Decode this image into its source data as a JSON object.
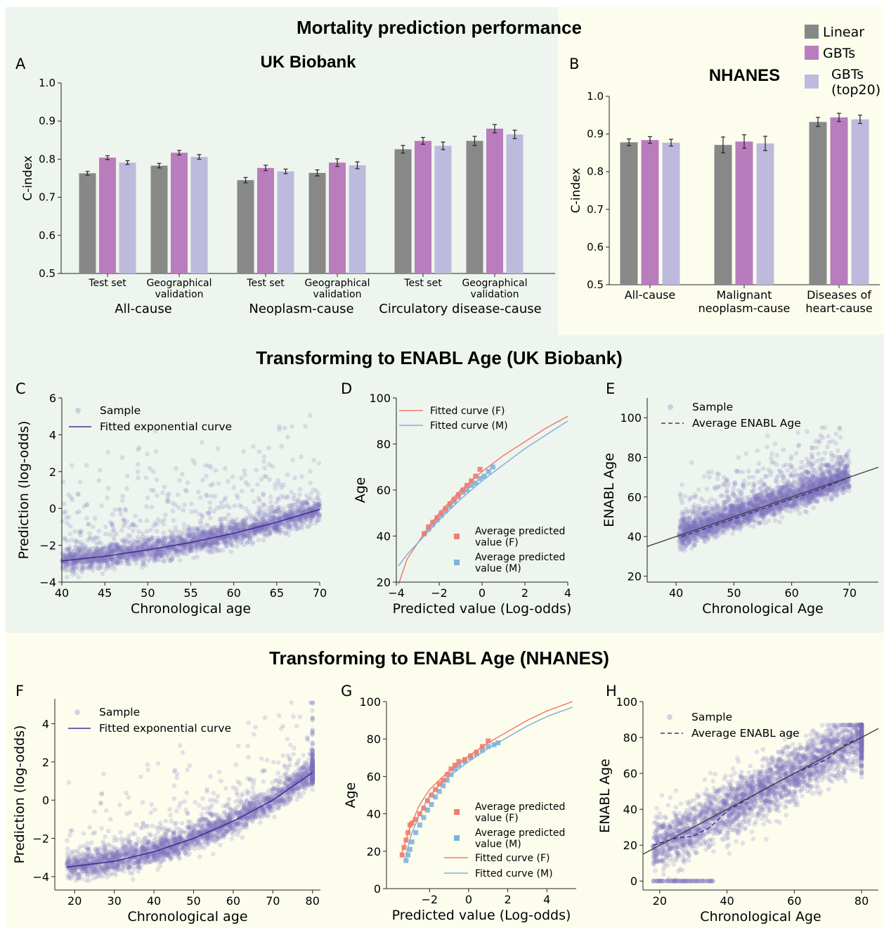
{
  "sections": {
    "top_title": "Mortality prediction performance",
    "mid_title": "Transforming to ENABL Age (UK Biobank)",
    "bottom_title": "Transforming to ENABL Age (NHANES)"
  },
  "colors": {
    "bg_green": "#eef5ee",
    "bg_yellow": "#fdfdee",
    "linear": "#888888",
    "gbts": "#b97dbd",
    "gbts20": "#bdbadd",
    "scatter": "#7e74bf",
    "curve": "#4b2c8f",
    "red": "#f27b6b",
    "blue": "#7fb2d8"
  },
  "chart_data": [
    {
      "id": "A",
      "panel_label": "A",
      "type": "bar",
      "title": "UK Biobank",
      "ylabel": "C-index",
      "ylim": [
        0.5,
        1.0
      ],
      "yticks": [
        "0.5",
        "0.6",
        "0.7",
        "0.8",
        "0.9",
        "1.0"
      ],
      "categories": [
        "Test set",
        "Geographical validation",
        "Test set",
        "Geographical validation",
        "Test set",
        "Geographical validation"
      ],
      "category_lines": [
        [
          "Test set"
        ],
        [
          "Geographical",
          "validation"
        ],
        [
          "Test set"
        ],
        [
          "Geographical",
          "validation"
        ],
        [
          "Test set"
        ],
        [
          "Geographical",
          "validation"
        ]
      ],
      "groups": [
        "All-cause",
        "Neoplasm-cause",
        "Circulatory disease-cause"
      ],
      "series": [
        {
          "name": "Linear",
          "values": [
            0.763,
            0.783,
            0.745,
            0.764,
            0.826,
            0.848
          ],
          "err": [
            0.005,
            0.006,
            0.007,
            0.008,
            0.01,
            0.012
          ]
        },
        {
          "name": "GBTs",
          "values": [
            0.804,
            0.817,
            0.777,
            0.791,
            0.848,
            0.88
          ],
          "err": [
            0.005,
            0.006,
            0.007,
            0.01,
            0.009,
            0.011
          ]
        },
        {
          "name": "GBTs (top20)",
          "values": [
            0.791,
            0.806,
            0.768,
            0.784,
            0.835,
            0.865
          ],
          "err": [
            0.005,
            0.006,
            0.006,
            0.009,
            0.01,
            0.011
          ]
        }
      ]
    },
    {
      "id": "B",
      "panel_label": "B",
      "type": "bar",
      "title": "NHANES",
      "ylabel": "C-index",
      "ylim": [
        0.5,
        1.0
      ],
      "yticks": [
        "0.5",
        "0.6",
        "0.7",
        "0.8",
        "0.9",
        "1.0"
      ],
      "categories": [
        "All-cause",
        "Malignant neoplasm-cause",
        "Diseases of heart-cause"
      ],
      "category_lines": [
        [
          "All-cause"
        ],
        [
          "Malignant",
          "neoplasm-cause"
        ],
        [
          "Diseases of",
          "heart-cause"
        ]
      ],
      "legend": [
        "Linear",
        "GBTs",
        "GBTs (top20)"
      ],
      "legend_lines": [
        [
          "Linear"
        ],
        [
          "GBTs"
        ],
        [
          "GBTs",
          "(top20)"
        ]
      ],
      "series": [
        {
          "name": "Linear",
          "values": [
            0.878,
            0.871,
            0.932
          ],
          "err": [
            0.009,
            0.021,
            0.012
          ]
        },
        {
          "name": "GBTs",
          "values": [
            0.884,
            0.88,
            0.944
          ],
          "err": [
            0.009,
            0.018,
            0.011
          ]
        },
        {
          "name": "GBTs (top20)",
          "values": [
            0.877,
            0.875,
            0.939
          ],
          "err": [
            0.009,
            0.019,
            0.011
          ]
        }
      ]
    },
    {
      "id": "C",
      "panel_label": "C",
      "type": "scatter",
      "xlabel": "Chronological age",
      "ylabel": "Prediction (log-odds)",
      "xlim": [
        40,
        70
      ],
      "ylim": [
        -4,
        6
      ],
      "xticks": [
        40,
        45,
        50,
        55,
        60,
        65,
        70
      ],
      "yticks": [
        -4,
        -2,
        0,
        2,
        4,
        6
      ],
      "legend": [
        "Sample",
        "Fitted exponential curve"
      ],
      "series": [
        {
          "name": "Sample",
          "x_range": [
            40,
            70
          ],
          "y_range": [
            -3.6,
            5.6
          ]
        },
        {
          "name": "Fitted exponential curve",
          "x": [
            40,
            45,
            50,
            55,
            60,
            65,
            70
          ],
          "y": [
            -2.85,
            -2.6,
            -2.25,
            -1.85,
            -1.35,
            -0.75,
            -0.05
          ]
        }
      ]
    },
    {
      "id": "D",
      "panel_label": "D",
      "type": "line",
      "xlabel": "Predicted value (Log-odds)",
      "ylabel": "Age",
      "xlim": [
        -4,
        4
      ],
      "ylim": [
        20,
        100
      ],
      "xticks": [
        -4,
        -2,
        0,
        2,
        4
      ],
      "yticks": [
        20,
        40,
        60,
        80,
        100
      ],
      "legend": [
        "Fitted curve (F)",
        "Fitted curve (M)"
      ],
      "legend2": [
        [
          "Average predicted",
          "value (F)"
        ],
        [
          "Average predicted",
          "value (M)"
        ]
      ],
      "series": [
        {
          "name": "Fitted curve (F)",
          "x": [
            -3.9,
            -3.5,
            -3,
            -2.5,
            -2,
            -1,
            0,
            1,
            2,
            3,
            4
          ],
          "y": [
            19,
            30,
            37,
            44,
            50,
            60,
            68,
            75,
            81,
            87,
            92
          ]
        },
        {
          "name": "Fitted curve (M)",
          "x": [
            -3.9,
            -3.5,
            -3,
            -2.5,
            -2,
            -1,
            0,
            1,
            2,
            3,
            4
          ],
          "y": [
            27,
            32,
            37,
            42,
            47,
            56,
            64,
            71,
            78,
            84,
            90
          ]
        },
        {
          "name": "Average predicted value (F)",
          "x": [
            -2.7,
            -2.5,
            -2.3,
            -2.1,
            -1.9,
            -1.7,
            -1.5,
            -1.3,
            -1.1,
            -0.9,
            -0.7,
            -0.5,
            -0.3,
            -0.1
          ],
          "y": [
            41,
            44,
            46,
            48,
            50,
            52,
            54,
            56,
            58,
            60,
            62,
            64,
            66,
            69
          ]
        },
        {
          "name": "Average predicted value (M)",
          "x": [
            -2.7,
            -2.5,
            -2.3,
            -2.1,
            -1.9,
            -1.7,
            -1.5,
            -1.3,
            -1.1,
            -0.9,
            -0.7,
            -0.5,
            -0.3,
            -0.1,
            0.1,
            0.3,
            0.5
          ],
          "y": [
            41,
            43,
            45,
            47,
            49,
            51,
            53,
            55,
            57,
            59,
            60,
            62,
            63,
            65,
            66,
            68,
            70
          ]
        }
      ]
    },
    {
      "id": "E",
      "panel_label": "E",
      "type": "scatter",
      "xlabel": "Chronological Age",
      "ylabel": "ENABL Age",
      "xlim": [
        35,
        75
      ],
      "ylim": [
        17,
        110
      ],
      "xticks": [
        40,
        50,
        60,
        70
      ],
      "yticks": [
        20,
        40,
        60,
        80,
        100
      ],
      "legend": [
        "Sample",
        "Average ENABL Age"
      ],
      "series": [
        {
          "name": "Sample",
          "x_range": [
            40,
            70
          ],
          "y_range": [
            27,
            95
          ]
        },
        {
          "name": "Average ENABL Age",
          "x": [
            41,
            45,
            50,
            55,
            60,
            65,
            70
          ],
          "y": [
            40,
            44,
            49,
            54,
            59,
            64,
            70
          ]
        },
        {
          "name": "Identity",
          "x": [
            35,
            75
          ],
          "y": [
            35,
            75
          ]
        }
      ]
    },
    {
      "id": "F",
      "panel_label": "F",
      "type": "scatter",
      "xlabel": "Chronological age",
      "ylabel": "Prediction (log-odds)",
      "xlim": [
        15,
        82
      ],
      "ylim": [
        -4.7,
        5.3
      ],
      "xticks": [
        20,
        30,
        40,
        50,
        60,
        70,
        80
      ],
      "yticks": [
        -4,
        -2,
        0,
        2,
        4
      ],
      "legend": [
        "Sample",
        "Fitted exponential curve"
      ],
      "series": [
        {
          "name": "Sample",
          "x_range": [
            18,
            80
          ],
          "y_range": [
            -4.2,
            5.2
          ]
        },
        {
          "name": "Fitted exponential curve",
          "x": [
            18,
            30,
            40,
            50,
            60,
            70,
            80
          ],
          "y": [
            -3.5,
            -3.2,
            -2.7,
            -2.0,
            -1.1,
            0.0,
            1.45
          ]
        }
      ]
    },
    {
      "id": "G",
      "panel_label": "G",
      "type": "line",
      "xlabel": "Predicted value (Log-odds)",
      "ylabel": "Age",
      "xlim": [
        -4.2,
        5.5
      ],
      "ylim": [
        0,
        100
      ],
      "xticks": [
        -2,
        0,
        2,
        4
      ],
      "yticks": [
        0,
        20,
        40,
        60,
        80,
        100
      ],
      "legend": [
        "Fitted curve (F)",
        "Fitted curve (M)"
      ],
      "legend2": [
        [
          "Average predicted",
          "value (F)"
        ],
        [
          "Average predicted",
          "value (M)"
        ]
      ],
      "series": [
        {
          "name": "Fitted curve (F)",
          "x": [
            -3.45,
            -3.2,
            -3,
            -2.5,
            -2,
            -1,
            0,
            1,
            2,
            3,
            4,
            5.3
          ],
          "y": [
            18,
            26,
            33,
            45,
            53,
            63,
            71,
            78,
            84,
            90,
            95,
            100
          ]
        },
        {
          "name": "Fitted curve (M)",
          "x": [
            -3.25,
            -3,
            -2.5,
            -2,
            -1,
            0,
            1,
            2,
            3,
            4,
            5.3
          ],
          "y": [
            15,
            27,
            40,
            50,
            60,
            68,
            75,
            81,
            87,
            92,
            97
          ]
        },
        {
          "name": "Average predicted value (F)",
          "x": [
            -3.4,
            -3.3,
            -3.2,
            -3.1,
            -3,
            -2.9,
            -2.7,
            -2.5,
            -2.3,
            -2.1,
            -1.9,
            -1.7,
            -1.5,
            -1.3,
            -1.1,
            -0.9,
            -0.7,
            -0.5,
            -0.2,
            0.1,
            0.4,
            0.7,
            1.0
          ],
          "y": [
            18,
            22,
            26,
            30,
            34,
            35,
            37,
            40,
            43,
            47,
            50,
            53,
            56,
            58,
            61,
            64,
            66,
            68,
            69,
            71,
            73,
            76,
            79
          ]
        },
        {
          "name": "Average predicted value (M)",
          "x": [
            -3.2,
            -3.1,
            -3,
            -2.9,
            -2.7,
            -2.5,
            -2.3,
            -2.1,
            -1.9,
            -1.7,
            -1.5,
            -1.3,
            -1.1,
            -0.9,
            -0.7,
            -0.5,
            -0.2,
            0.1,
            0.4,
            0.7,
            1.0,
            1.3,
            1.5
          ],
          "y": [
            15,
            18,
            21,
            25,
            30,
            34,
            38,
            42,
            45,
            49,
            52,
            55,
            58,
            61,
            64,
            66,
            68,
            70,
            72,
            74,
            76,
            77,
            78
          ]
        }
      ]
    },
    {
      "id": "H",
      "panel_label": "H",
      "type": "scatter",
      "xlabel": "Chronological Age",
      "ylabel": "ENABL Age",
      "xlim": [
        15,
        85
      ],
      "ylim": [
        -5,
        100
      ],
      "xticks": [
        20,
        40,
        60,
        80
      ],
      "yticks": [
        0,
        20,
        40,
        60,
        80,
        100
      ],
      "legend": [
        "Sample",
        "Average ENABL age"
      ],
      "series": [
        {
          "name": "Sample",
          "x_range": [
            18,
            80
          ],
          "y_range": [
            0,
            87
          ]
        },
        {
          "name": "Average ENABL age",
          "x": [
            18,
            25,
            30,
            35,
            40,
            50,
            60,
            70,
            75,
            80
          ],
          "y": [
            20,
            24,
            25,
            30,
            39,
            50,
            60,
            68,
            76,
            80
          ]
        },
        {
          "name": "Identity",
          "x": [
            15,
            85
          ],
          "y": [
            15,
            85
          ]
        }
      ]
    }
  ]
}
